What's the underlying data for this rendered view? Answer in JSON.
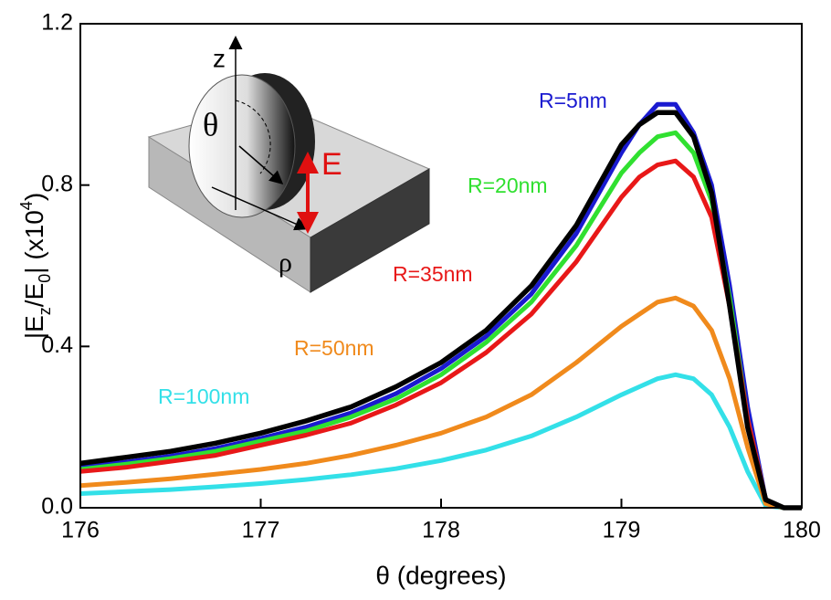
{
  "chart_data": {
    "type": "line",
    "xlabel": "θ (degrees)",
    "ylabel": [
      "|E",
      "z",
      "/E",
      "0",
      "| (x10",
      "4",
      ")"
    ],
    "x": [
      176,
      176.25,
      176.5,
      176.75,
      177,
      177.25,
      177.5,
      177.75,
      178,
      178.25,
      178.5,
      178.75,
      179,
      179.1,
      179.2,
      179.3,
      179.4,
      179.5,
      179.6,
      179.7,
      179.8,
      179.9,
      180
    ],
    "series": [
      {
        "name": "R=100nm",
        "color": "#33e0e8",
        "values": [
          0.035,
          0.04,
          0.045,
          0.052,
          0.06,
          0.07,
          0.082,
          0.097,
          0.117,
          0.143,
          0.178,
          0.225,
          0.28,
          0.3,
          0.32,
          0.33,
          0.32,
          0.28,
          0.2,
          0.09,
          0.005,
          0,
          0
        ]
      },
      {
        "name": "R=50nm",
        "color": "#f08a1c",
        "values": [
          0.055,
          0.063,
          0.072,
          0.083,
          0.095,
          0.11,
          0.13,
          0.155,
          0.185,
          0.225,
          0.28,
          0.36,
          0.45,
          0.48,
          0.51,
          0.52,
          0.5,
          0.44,
          0.32,
          0.15,
          0.01,
          0,
          0
        ]
      },
      {
        "name": "R=5nm",
        "color": "#1a1ad0",
        "values": [
          0.1,
          0.113,
          0.128,
          0.147,
          0.172,
          0.2,
          0.235,
          0.283,
          0.345,
          0.425,
          0.53,
          0.68,
          0.88,
          0.95,
          1.0,
          1.0,
          0.93,
          0.8,
          0.55,
          0.25,
          0.02,
          0,
          0
        ]
      },
      {
        "name": "R=20nm",
        "color": "#30e030",
        "values": [
          0.095,
          0.108,
          0.122,
          0.14,
          0.165,
          0.19,
          0.225,
          0.27,
          0.33,
          0.41,
          0.51,
          0.65,
          0.83,
          0.88,
          0.92,
          0.93,
          0.88,
          0.76,
          0.52,
          0.22,
          0.02,
          0,
          0
        ]
      },
      {
        "name": "R=35nm",
        "color": "#e81818",
        "values": [
          0.09,
          0.1,
          0.115,
          0.13,
          0.155,
          0.18,
          0.21,
          0.255,
          0.31,
          0.385,
          0.48,
          0.61,
          0.77,
          0.82,
          0.85,
          0.86,
          0.82,
          0.72,
          0.5,
          0.22,
          0.02,
          0,
          0
        ]
      },
      {
        "color": "#000000",
        "values": [
          0.11,
          0.125,
          0.14,
          0.16,
          0.185,
          0.215,
          0.25,
          0.3,
          0.36,
          0.44,
          0.55,
          0.7,
          0.9,
          0.95,
          0.98,
          0.98,
          0.92,
          0.78,
          0.5,
          0.2,
          0.02,
          0,
          0
        ]
      }
    ],
    "xlim": [
      176,
      180
    ],
    "xticks": [
      176,
      177,
      178,
      179,
      180
    ],
    "ylim": [
      0,
      1.2
    ],
    "yticks": [
      {
        "value": 0,
        "label": "0.0"
      },
      0.4,
      0.8,
      1.2
    ],
    "inset_labels": [
      "z",
      "θ",
      "E",
      "ρ"
    ]
  }
}
